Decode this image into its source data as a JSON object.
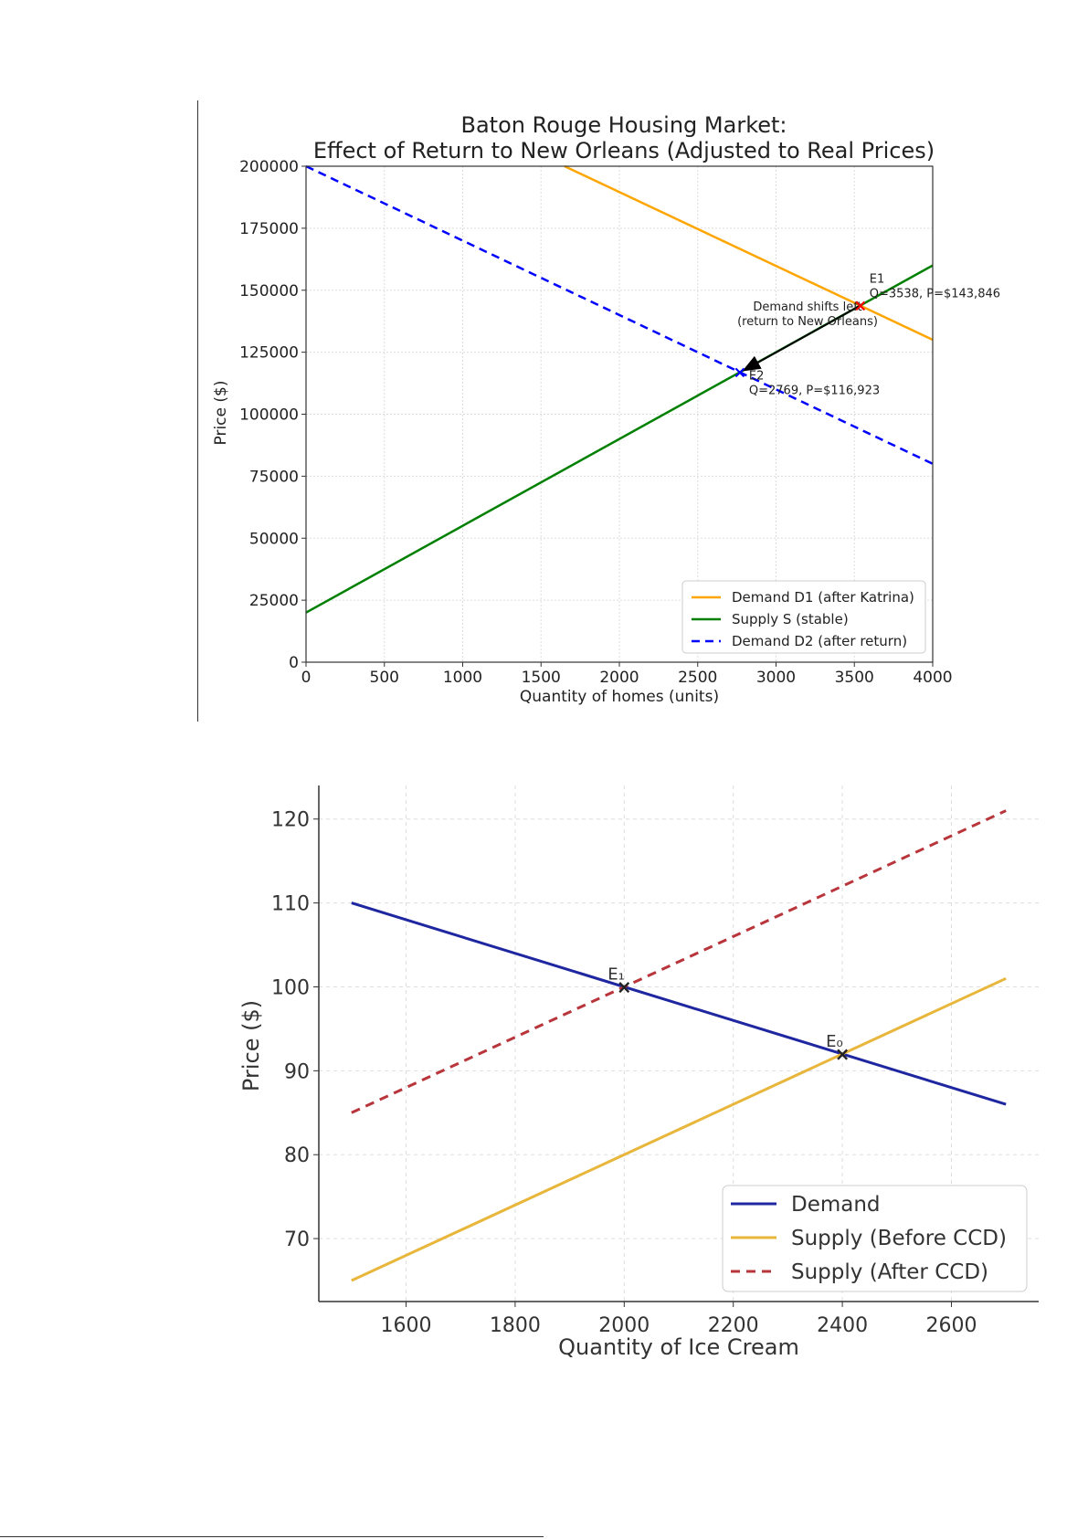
{
  "chart_data": [
    {
      "type": "line",
      "title_line1": "Baton Rouge Housing Market:",
      "title_line2": "Effect of Return to New Orleans (Adjusted to Real Prices)",
      "xlabel": "Quantity of homes (units)",
      "ylabel": "Price ($)",
      "xlim": [
        0,
        4000
      ],
      "ylim": [
        0,
        200000
      ],
      "xticks": [
        0,
        500,
        1000,
        1500,
        2000,
        2500,
        3000,
        3500,
        4000
      ],
      "yticks": [
        0,
        25000,
        50000,
        75000,
        100000,
        125000,
        150000,
        175000,
        200000
      ],
      "grid": true,
      "legend_position": "bottom-right",
      "series": [
        {
          "name": "Demand D1 (after Katrina)",
          "color": "#ffa500",
          "style": "solid",
          "x": [
            1650,
            4000
          ],
          "y": [
            200000,
            130000
          ]
        },
        {
          "name": "Supply S (stable)",
          "color": "#008000",
          "style": "solid",
          "x": [
            0,
            4000
          ],
          "y": [
            20000,
            160000
          ]
        },
        {
          "name": "Demand D2 (after return)",
          "color": "#0000ff",
          "style": "dashed",
          "x": [
            0,
            4000
          ],
          "y": [
            200000,
            80000
          ]
        }
      ],
      "points": [
        {
          "name": "E1",
          "x": 3538,
          "y": 143846,
          "color": "#ff0000",
          "label": "E1",
          "detail": "Q=3538, P=$143,846"
        },
        {
          "name": "E2",
          "x": 2769,
          "y": 116923,
          "color": "#0000ff",
          "label": "E2",
          "detail": "Q=2769, P=$116,923"
        }
      ],
      "annotation": {
        "line1": "Demand shifts left",
        "line2": "(return to New Orleans)",
        "from": [
          3538,
          143846
        ],
        "to": [
          2769,
          116923
        ]
      }
    },
    {
      "type": "line",
      "xlabel": "Quantity of Ice Cream",
      "ylabel": "Price ($)",
      "xlim": [
        1440,
        2760
      ],
      "ylim": [
        62.5,
        124
      ],
      "xticks": [
        1600,
        1800,
        2000,
        2200,
        2400,
        2600
      ],
      "yticks": [
        70,
        80,
        90,
        100,
        110,
        120
      ],
      "grid": true,
      "legend_position": "bottom-right",
      "series": [
        {
          "name": "Demand",
          "color": "#1f27a0",
          "style": "solid",
          "x": [
            1500,
            2700
          ],
          "y": [
            110,
            86
          ]
        },
        {
          "name": "Supply (Before CCD)",
          "color": "#e8b63b",
          "style": "solid",
          "x": [
            1500,
            2700
          ],
          "y": [
            65,
            101
          ]
        },
        {
          "name": "Supply (After CCD)",
          "color": "#b8353b",
          "style": "dashed",
          "x": [
            1500,
            2700
          ],
          "y": [
            85,
            121
          ]
        }
      ],
      "points": [
        {
          "name": "E1",
          "x": 2000,
          "y": 100,
          "label": "E₁"
        },
        {
          "name": "E0",
          "x": 2400,
          "y": 92,
          "label": "E₀"
        }
      ]
    }
  ]
}
